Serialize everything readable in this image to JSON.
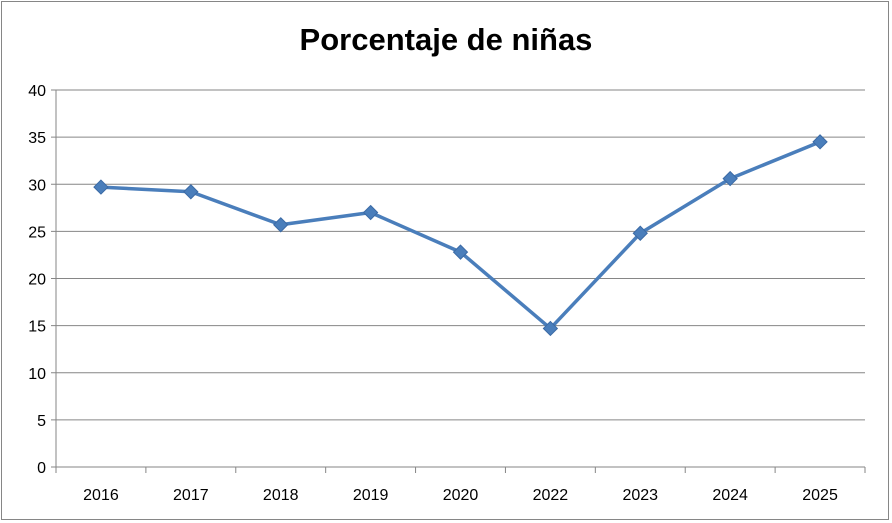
{
  "chart_data": {
    "type": "line",
    "title": "Porcentaje de niñas",
    "categories": [
      "2016",
      "2017",
      "2018",
      "2019",
      "2020",
      "2022",
      "2023",
      "2024",
      "2025"
    ],
    "series": [
      {
        "values": [
          29.7,
          29.2,
          25.7,
          27.0,
          22.8,
          14.7,
          24.8,
          30.6,
          34.5
        ]
      }
    ],
    "ylim": [
      0,
      40
    ],
    "yticks": [
      0,
      5,
      10,
      15,
      20,
      25,
      30,
      35,
      40
    ],
    "grid": true,
    "legend": "none",
    "line_color": "#4a7ebb"
  }
}
